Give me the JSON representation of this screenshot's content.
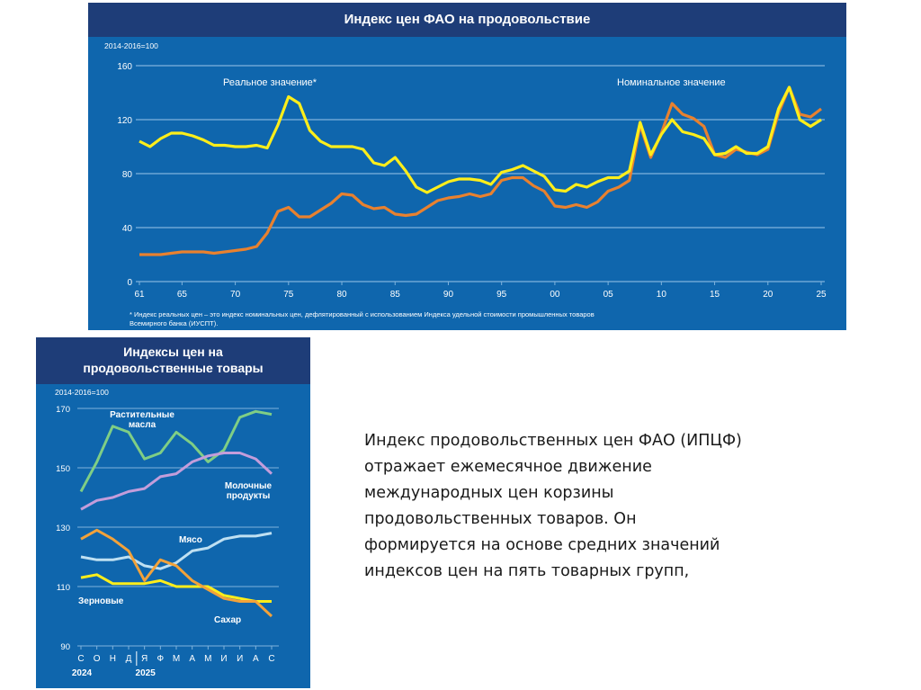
{
  "top_chart": {
    "title": "Индекс цен ФАО на продовольствие",
    "base_label": "2014-2016=100",
    "footnote_line1": "* Индекс реальных цен – это индекс номинальных цен, дефлятированный с использованием Индекса удельной стоимости промышленных товаров",
    "footnote_line2": "Всемирного банка (ИУСПТ).",
    "colors": {
      "real": "#ffee1a",
      "nominal": "#e8812f",
      "grid": "#7fb3dd",
      "text": "#ffffff"
    }
  },
  "bottom_chart": {
    "title_line1": "Индексы цен на",
    "title_line2": "продовольственные товары",
    "base_label": "2014-2016=100",
    "colors": {
      "veg": "#7fce85",
      "dairy": "#c39ddb",
      "meat": "#bfe0f2",
      "cereals": "#ffee1a",
      "sugar": "#f2a23a"
    }
  },
  "body_text": {
    "lines": [
      "Индекс продовольственных цен ФАО (ИПЦФ)",
      "отражает ежемесячное движение",
      "международных цен корзины",
      "продовольственных товаров. Он",
      "формируется на основе средних значений",
      "индексов цен на пять товарных групп,"
    ]
  },
  "chart_data": [
    {
      "type": "line",
      "title": "Индекс цен ФАО на продовольствие",
      "ylabel": "2014-2016=100",
      "ylim": [
        0,
        160
      ],
      "yticks": [
        0,
        40,
        80,
        120,
        160
      ],
      "xlim": [
        1961,
        2025
      ],
      "xtick_values": [
        1961,
        1965,
        1970,
        1975,
        1980,
        1985,
        1990,
        1995,
        2000,
        2005,
        2010,
        2015,
        2020,
        2025
      ],
      "xtick_labels": [
        "61",
        "65",
        "70",
        "75",
        "80",
        "85",
        "90",
        "95",
        "00",
        "05",
        "10",
        "15",
        "20",
        "25"
      ],
      "x": [
        1961,
        1962,
        1963,
        1964,
        1965,
        1966,
        1967,
        1968,
        1969,
        1970,
        1971,
        1972,
        1973,
        1974,
        1975,
        1976,
        1977,
        1978,
        1979,
        1980,
        1981,
        1982,
        1983,
        1984,
        1985,
        1986,
        1987,
        1988,
        1989,
        1990,
        1991,
        1992,
        1993,
        1994,
        1995,
        1996,
        1997,
        1998,
        1999,
        2000,
        2001,
        2002,
        2003,
        2004,
        2005,
        2006,
        2007,
        2008,
        2009,
        2010,
        2011,
        2012,
        2013,
        2014,
        2015,
        2016,
        2017,
        2018,
        2019,
        2020,
        2021,
        2022,
        2023,
        2024,
        2025
      ],
      "series": [
        {
          "name": "Реальное значение*",
          "label": "Реальное значение*",
          "values": [
            104,
            100,
            106,
            110,
            110,
            108,
            105,
            101,
            101,
            100,
            100,
            101,
            99,
            116,
            137,
            132,
            112,
            104,
            100,
            100,
            100,
            98,
            88,
            86,
            92,
            82,
            70,
            66,
            70,
            74,
            76,
            76,
            75,
            72,
            81,
            83,
            86,
            82,
            78,
            68,
            67,
            72,
            70,
            74,
            77,
            77,
            82,
            118,
            94,
            109,
            120,
            111,
            109,
            106,
            94,
            95,
            100,
            95,
            95,
            100,
            128,
            144,
            120,
            115,
            120
          ]
        },
        {
          "name": "Номинальное значение",
          "label": "Номинальное значение",
          "values": [
            20,
            20,
            20,
            21,
            22,
            22,
            22,
            21,
            22,
            23,
            24,
            26,
            36,
            52,
            55,
            48,
            48,
            53,
            58,
            65,
            64,
            57,
            54,
            55,
            50,
            49,
            50,
            55,
            60,
            62,
            63,
            65,
            63,
            65,
            75,
            77,
            77,
            71,
            67,
            56,
            55,
            57,
            55,
            59,
            67,
            70,
            75,
            116,
            92,
            110,
            132,
            124,
            121,
            115,
            94,
            92,
            98,
            96,
            94,
            98,
            125,
            144,
            124,
            122,
            128
          ]
        }
      ]
    },
    {
      "type": "line",
      "title": "Индексы цен на продовольственные товары",
      "ylabel": "2014-2016=100",
      "ylim": [
        90,
        170
      ],
      "yticks": [
        90,
        110,
        130,
        150,
        170
      ],
      "categories": [
        "С",
        "О",
        "Н",
        "Д",
        "Я",
        "Ф",
        "М",
        "А",
        "М",
        "И",
        "И",
        "А",
        "С"
      ],
      "year_labels": [
        "2024",
        "2025"
      ],
      "series": [
        {
          "name": "Растительные масла",
          "label_line1": "Растительные",
          "label_line2": "масла",
          "values": [
            142,
            152,
            164,
            162,
            153,
            155,
            162,
            158,
            152,
            156,
            167,
            169,
            168
          ]
        },
        {
          "name": "Молочные продукты",
          "label_line1": "Молочные",
          "label_line2": "продукты",
          "values": [
            136,
            139,
            140,
            142,
            143,
            147,
            148,
            152,
            154,
            155,
            155,
            153,
            148
          ]
        },
        {
          "name": "Мясо",
          "label": "Мясо",
          "values": [
            120,
            119,
            119,
            120,
            117,
            116,
            118,
            122,
            123,
            126,
            127,
            127,
            128
          ]
        },
        {
          "name": "Зерновые",
          "label": "Зерновые",
          "values": [
            113,
            114,
            111,
            111,
            111,
            112,
            110,
            110,
            110,
            107,
            106,
            105,
            105
          ]
        },
        {
          "name": "Сахар",
          "label": "Сахар",
          "values": [
            126,
            129,
            126,
            122,
            112,
            119,
            117,
            112,
            109,
            106,
            105,
            105,
            100
          ]
        }
      ]
    }
  ]
}
